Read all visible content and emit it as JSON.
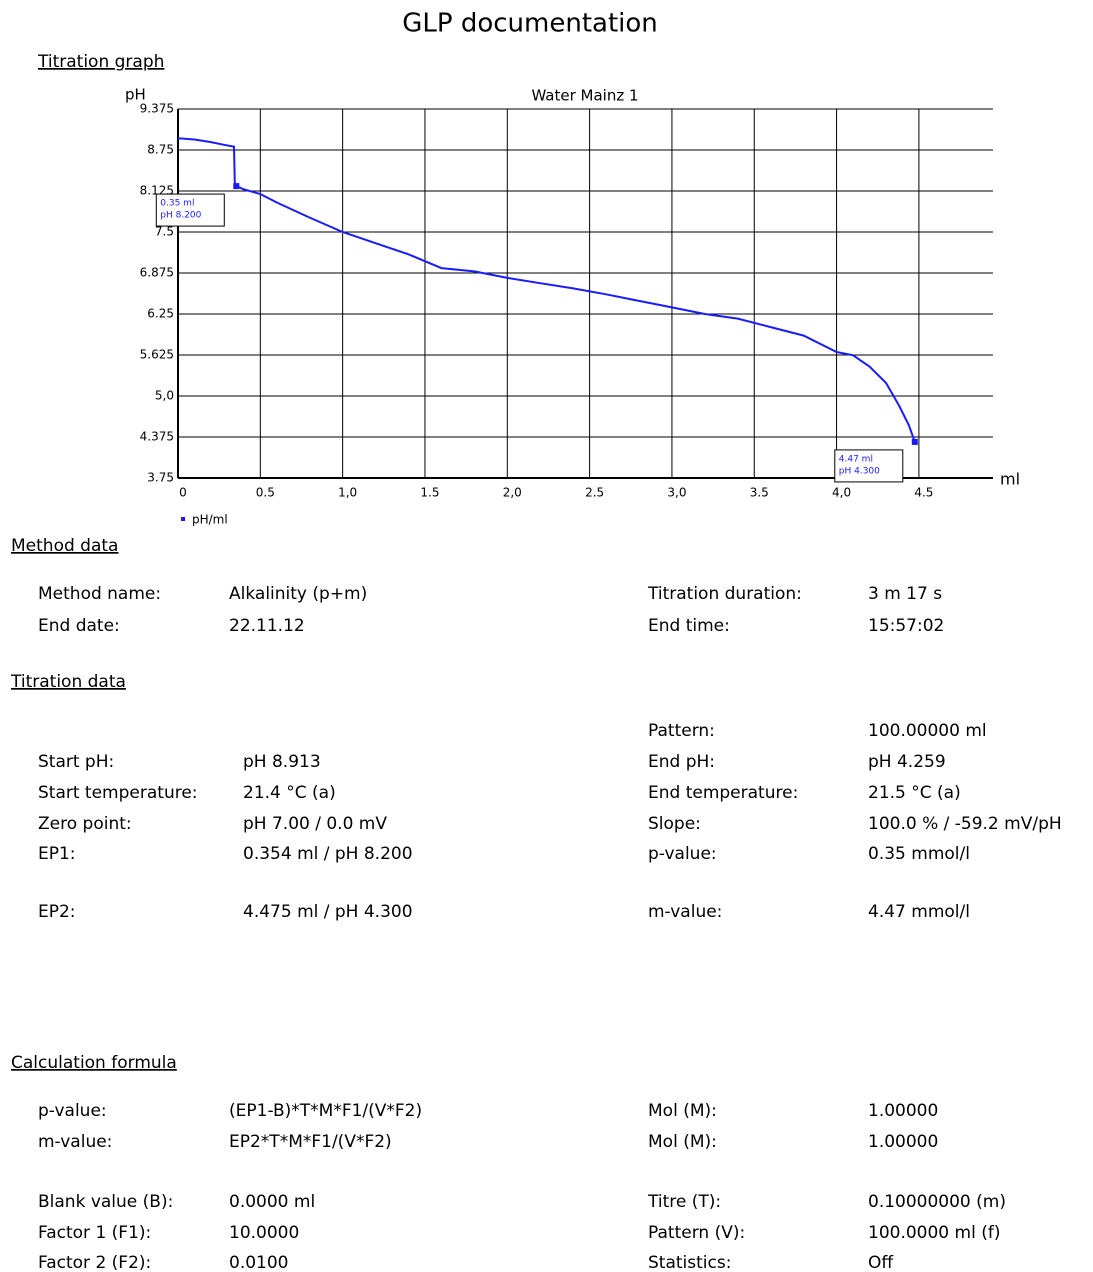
{
  "header": {
    "title": "GLP documentation"
  },
  "graph_heading": "Titration graph",
  "chart_data": {
    "type": "line",
    "title": "Water Mainz 1",
    "y_label": "pH",
    "x_label": "ml",
    "xlim": [
      0,
      4.95
    ],
    "ylim": [
      3.75,
      9.375
    ],
    "xticks": [
      0,
      0.5,
      {
        "value": 1,
        "label": "1,0"
      },
      1.5,
      {
        "value": 2,
        "label": "2,0"
      },
      2.5,
      {
        "value": 3,
        "label": "3,0"
      },
      3.5,
      {
        "value": 4,
        "label": "4,0"
      },
      4.5
    ],
    "yticks": [
      3.75,
      4.375,
      {
        "value": 5,
        "label": "5,0"
      },
      5.625,
      6.25,
      6.875,
      7.5,
      8.125,
      8.75,
      9.375
    ],
    "grid": true,
    "legend": "bottom-left",
    "series": [
      {
        "name": "pH/ml",
        "color": "#1a1aff",
        "x": [
          0,
          0.1,
          0.2,
          0.28,
          0.34,
          0.345,
          0.354,
          0.4,
          0.5,
          0.6,
          0.8,
          1.0,
          1.2,
          1.4,
          1.6,
          1.8,
          2.0,
          2.2,
          2.4,
          2.6,
          2.8,
          3.0,
          3.2,
          3.4,
          3.6,
          3.8,
          4.0,
          4.1,
          4.2,
          4.3,
          4.38,
          4.44,
          4.475
        ],
        "values": [
          8.93,
          8.91,
          8.87,
          8.83,
          8.8,
          8.25,
          8.2,
          8.15,
          8.08,
          7.95,
          7.72,
          7.5,
          7.33,
          7.16,
          6.95,
          6.9,
          6.8,
          6.72,
          6.64,
          6.55,
          6.45,
          6.35,
          6.25,
          6.18,
          6.05,
          5.92,
          5.67,
          5.62,
          5.45,
          5.2,
          4.85,
          4.55,
          4.3
        ]
      }
    ],
    "annotations": [
      {
        "x": 0.354,
        "y": 8.2,
        "lines": [
          "0.35 ml",
          "pH 8.200"
        ]
      },
      {
        "x": 4.475,
        "y": 4.3,
        "lines": [
          "4.47 ml",
          "pH 4.300"
        ]
      }
    ]
  },
  "sections": [
    {
      "heading": "Method data",
      "rows": [
        {
          "left": [
            "Method name:",
            "Alkalinity (p+m)"
          ],
          "right": [
            "Titration duration:",
            "3 m 17 s"
          ]
        },
        {
          "left": [
            "End date:",
            "22.11.12"
          ],
          "right": [
            "End time:",
            "15:57:02"
          ]
        }
      ]
    },
    {
      "heading": "Titration data",
      "rows": [
        {
          "right": [
            "Pattern:",
            "100.00000 ml"
          ]
        },
        {
          "left": [
            "Start pH:",
            "pH 8.913"
          ],
          "right": [
            "End pH:",
            "pH 4.259"
          ]
        },
        {
          "left": [
            "Start temperature:",
            "21.4 °C (a)"
          ],
          "right": [
            "End temperature:",
            "21.5 °C (a)"
          ]
        },
        {
          "left": [
            "Zero point:",
            "pH 7.00 / 0.0 mV"
          ],
          "right": [
            "Slope:",
            "100.0 % / -59.2 mV/pH"
          ]
        },
        {
          "left": [
            "EP1:",
            "0.354 ml / pH 8.200"
          ],
          "right": [
            "p-value:",
            "0.35 mmol/l"
          ]
        },
        {
          "left": [
            "EP2:",
            "4.475 ml / pH 4.300"
          ],
          "right": [
            "m-value:",
            "4.47 mmol/l"
          ]
        }
      ]
    },
    {
      "heading": "Calculation formula",
      "rows": [
        {
          "left": [
            "p-value:",
            "(EP1-B)*T*M*F1/(V*F2)"
          ],
          "right": [
            "Mol (M):",
            "1.00000"
          ]
        },
        {
          "left": [
            "m-value:",
            "EP2*T*M*F1/(V*F2)"
          ],
          "right": [
            "Mol (M):",
            "1.00000"
          ]
        },
        {
          "left": [
            "Blank value (B):",
            "0.0000 ml"
          ],
          "right": [
            "Titre (T):",
            "0.10000000 (m)"
          ]
        },
        {
          "left": [
            "Factor 1 (F1):",
            "10.0000"
          ],
          "right": [
            "Pattern (V):",
            "100.0000 ml (f)"
          ]
        },
        {
          "left": [
            "Factor 2 (F2):",
            "0.0100"
          ],
          "right": [
            "Statistics:",
            "Off"
          ]
        }
      ]
    }
  ]
}
